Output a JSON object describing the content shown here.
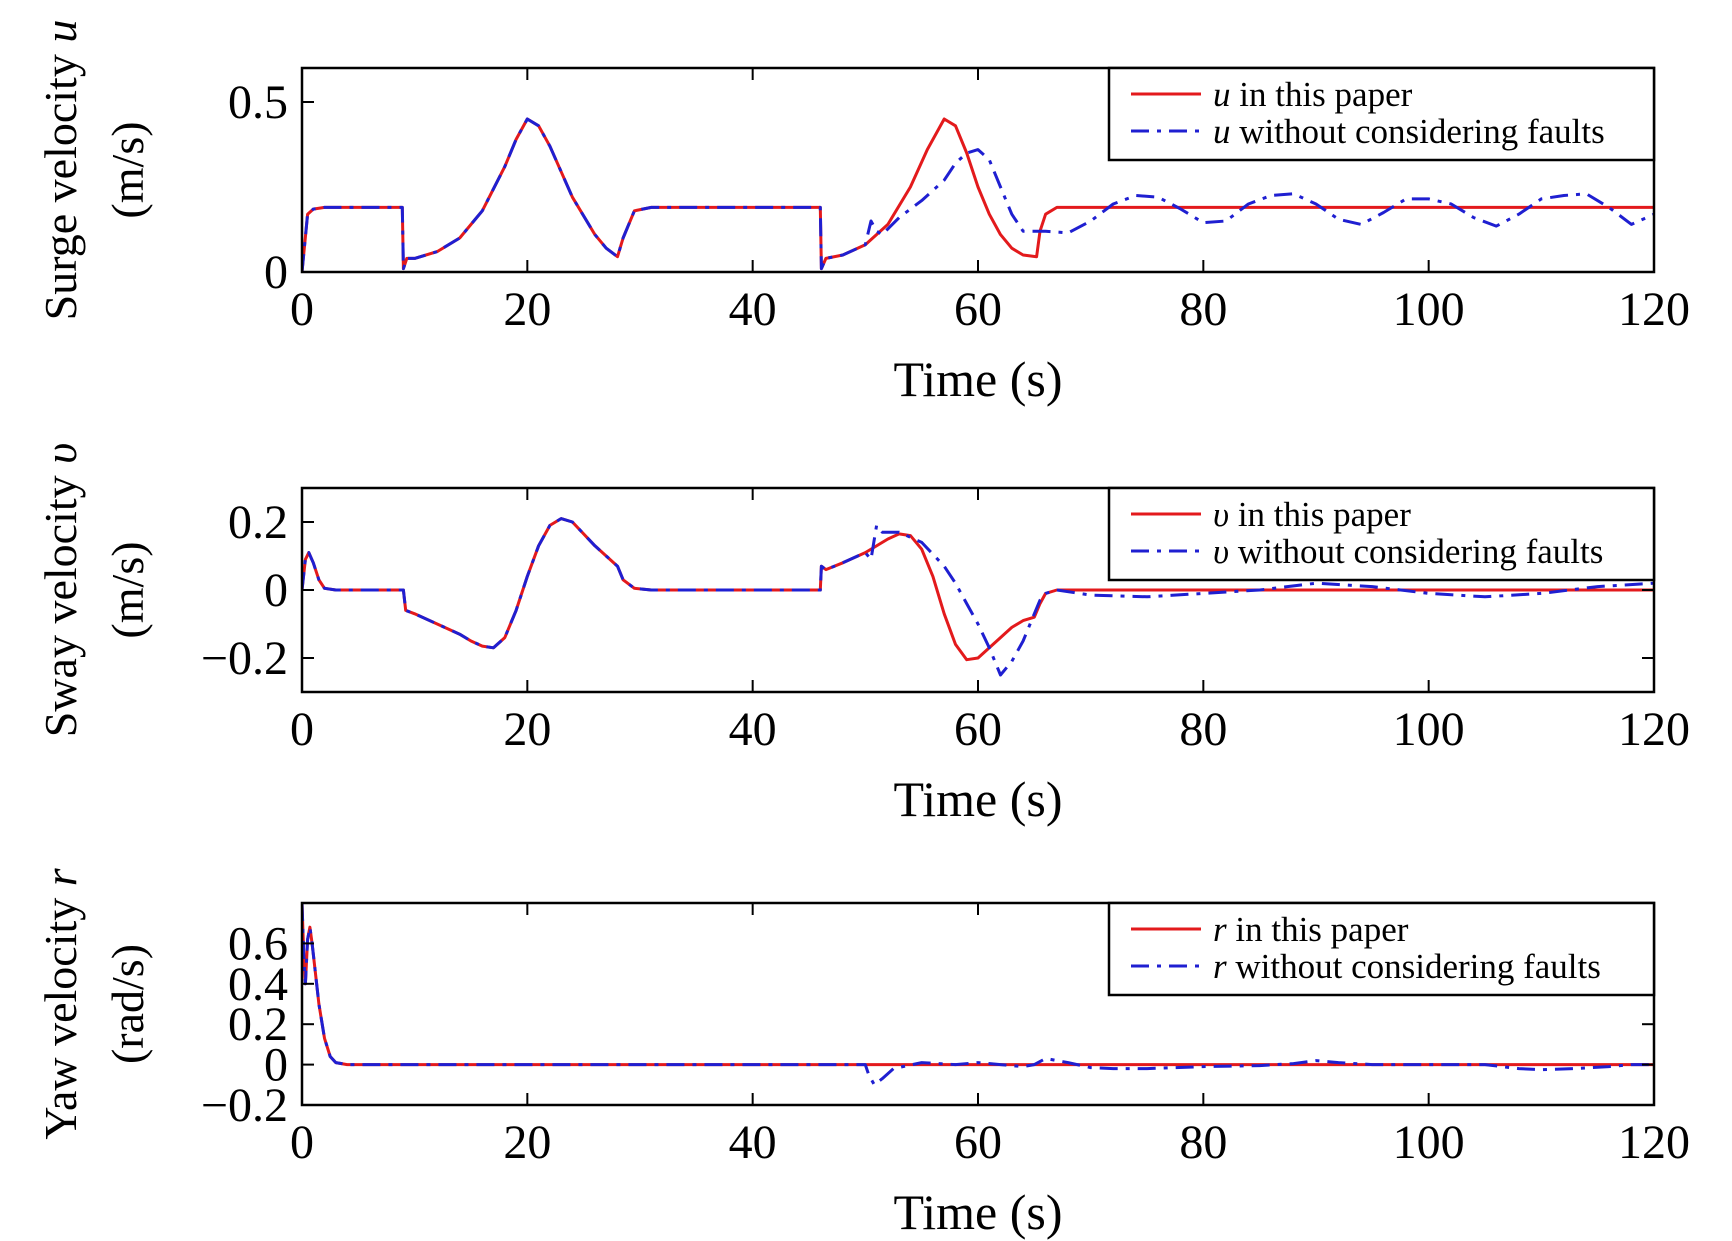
{
  "chart_data": [
    {
      "type": "line",
      "xlabel": "Time (s)",
      "ylabel_line1": "Surge velocity",
      "ylabel_symbol": "u",
      "ylabel_line2": "(m/s)",
      "xlim": [
        0,
        120
      ],
      "ylim": [
        0,
        0.6
      ],
      "xticks": [
        0,
        20,
        40,
        60,
        80,
        100,
        120
      ],
      "xtick_labels": [
        "0",
        "20",
        "40",
        "60",
        "80",
        "100",
        "120"
      ],
      "yticks": [
        0,
        0.5
      ],
      "ytick_labels": [
        "0",
        "0.5"
      ],
      "grid": false,
      "legend_position": "top-right",
      "series": [
        {
          "name": "u in this paper",
          "legend_symbol": "u",
          "legend_text": "in this paper",
          "color": "#e31a1c",
          "dash": "solid",
          "x": [
            0,
            0.5,
            1,
            2,
            5,
            8.9,
            9,
            9.3,
            10,
            12,
            14,
            16,
            18,
            19,
            20,
            21,
            22,
            24,
            26,
            27,
            28,
            28.5,
            29.5,
            31,
            35,
            40,
            46,
            46.1,
            46.5,
            48,
            50,
            52,
            54,
            55.5,
            57,
            58,
            59,
            60,
            61,
            62,
            63,
            64,
            65.2,
            65.5,
            66,
            67,
            70,
            75,
            80,
            90,
            100,
            110,
            120
          ],
          "y": [
            0,
            0.17,
            0.185,
            0.19,
            0.19,
            0.19,
            0.01,
            0.04,
            0.04,
            0.06,
            0.1,
            0.18,
            0.31,
            0.39,
            0.45,
            0.43,
            0.37,
            0.22,
            0.11,
            0.07,
            0.045,
            0.1,
            0.18,
            0.19,
            0.19,
            0.19,
            0.19,
            0.01,
            0.04,
            0.05,
            0.08,
            0.14,
            0.25,
            0.36,
            0.45,
            0.43,
            0.35,
            0.25,
            0.17,
            0.11,
            0.07,
            0.05,
            0.045,
            0.12,
            0.17,
            0.19,
            0.19,
            0.19,
            0.19,
            0.19,
            0.19,
            0.19,
            0.19
          ]
        },
        {
          "name": "u without considering faults",
          "legend_symbol": "u",
          "legend_text": "without considering faults",
          "color": "#1f1fd1",
          "dash": "dashdot",
          "x": [
            0,
            0.5,
            1,
            2,
            5,
            8.9,
            9,
            9.3,
            10,
            12,
            14,
            16,
            18,
            19,
            20,
            21,
            22,
            24,
            26,
            27,
            28,
            28.5,
            29.5,
            31,
            35,
            40,
            46,
            46.1,
            46.5,
            48,
            50,
            50.5,
            51,
            51.5,
            53,
            55,
            57,
            58,
            59,
            60,
            61,
            62,
            63,
            64,
            66,
            68,
            70,
            72,
            74,
            76,
            78,
            80,
            82,
            84,
            86,
            88,
            90,
            92,
            94,
            96,
            98,
            100,
            102,
            104,
            106,
            108,
            110,
            112,
            114,
            116,
            118,
            120
          ],
          "y": [
            0,
            0.17,
            0.185,
            0.19,
            0.19,
            0.19,
            0.01,
            0.04,
            0.04,
            0.06,
            0.1,
            0.18,
            0.31,
            0.39,
            0.45,
            0.43,
            0.37,
            0.22,
            0.11,
            0.07,
            0.045,
            0.1,
            0.18,
            0.19,
            0.19,
            0.19,
            0.19,
            0.01,
            0.04,
            0.05,
            0.08,
            0.15,
            0.12,
            0.11,
            0.16,
            0.21,
            0.27,
            0.32,
            0.35,
            0.36,
            0.33,
            0.25,
            0.17,
            0.12,
            0.12,
            0.115,
            0.15,
            0.2,
            0.225,
            0.22,
            0.185,
            0.145,
            0.15,
            0.2,
            0.225,
            0.23,
            0.2,
            0.155,
            0.14,
            0.175,
            0.215,
            0.215,
            0.2,
            0.16,
            0.135,
            0.17,
            0.215,
            0.225,
            0.23,
            0.19,
            0.14,
            0.17
          ]
        }
      ]
    },
    {
      "type": "line",
      "xlabel": "Time (s)",
      "ylabel_line1": "Sway velocity",
      "ylabel_symbol": "υ",
      "ylabel_line2": "(m/s)",
      "xlim": [
        0,
        120
      ],
      "ylim": [
        -0.3,
        0.3
      ],
      "xticks": [
        0,
        20,
        40,
        60,
        80,
        100,
        120
      ],
      "xtick_labels": [
        "0",
        "20",
        "40",
        "60",
        "80",
        "100",
        "120"
      ],
      "yticks": [
        -0.2,
        0,
        0.2
      ],
      "ytick_labels": [
        "−0.2",
        "0",
        "0.2"
      ],
      "grid": false,
      "legend_position": "top-right",
      "series": [
        {
          "name": "υ in this paper",
          "legend_symbol": "υ",
          "legend_text": "in this paper",
          "color": "#e31a1c",
          "dash": "solid",
          "x": [
            0,
            0.3,
            0.6,
            1,
            1.5,
            2,
            3,
            5,
            9,
            9.2,
            10,
            12,
            14,
            15,
            16,
            17,
            18,
            19,
            20,
            21,
            22,
            23,
            24,
            26,
            28,
            28.5,
            29.5,
            31,
            40,
            46,
            46.1,
            46.5,
            48,
            50,
            52,
            53,
            54,
            55,
            56,
            57,
            58,
            59,
            60,
            61,
            62,
            63,
            64,
            65,
            65.5,
            66,
            67,
            70,
            80,
            90,
            100,
            120
          ],
          "y": [
            0,
            0.09,
            0.11,
            0.08,
            0.03,
            0.005,
            0,
            0,
            0,
            -0.06,
            -0.07,
            -0.1,
            -0.13,
            -0.15,
            -0.165,
            -0.17,
            -0.14,
            -0.06,
            0.04,
            0.13,
            0.19,
            0.21,
            0.2,
            0.13,
            0.07,
            0.03,
            0.005,
            0,
            0,
            0,
            0.07,
            0.06,
            0.08,
            0.11,
            0.15,
            0.165,
            0.16,
            0.12,
            0.04,
            -0.07,
            -0.16,
            -0.205,
            -0.2,
            -0.17,
            -0.14,
            -0.11,
            -0.09,
            -0.08,
            -0.04,
            -0.01,
            0,
            0,
            0,
            0,
            0,
            0
          ]
        },
        {
          "name": "υ without considering faults",
          "legend_symbol": "υ",
          "legend_text": "without considering faults",
          "color": "#1f1fd1",
          "dash": "dashdot",
          "x": [
            0,
            0.3,
            0.6,
            1,
            1.5,
            2,
            3,
            5,
            9,
            9.2,
            10,
            12,
            14,
            15,
            16,
            17,
            18,
            19,
            20,
            21,
            22,
            23,
            24,
            26,
            28,
            28.5,
            29.5,
            31,
            40,
            46,
            46.1,
            46.5,
            48,
            50,
            50.5,
            51,
            51.5,
            52,
            53,
            55,
            57,
            58,
            59,
            60,
            61,
            62,
            63,
            64,
            65,
            65.5,
            66,
            67,
            70,
            75,
            80,
            85,
            90,
            95,
            100,
            105,
            110,
            115,
            120
          ],
          "y": [
            0,
            0.09,
            0.11,
            0.08,
            0.03,
            0.005,
            0,
            0,
            0,
            -0.06,
            -0.07,
            -0.1,
            -0.13,
            -0.15,
            -0.165,
            -0.17,
            -0.14,
            -0.06,
            0.04,
            0.13,
            0.19,
            0.21,
            0.2,
            0.13,
            0.07,
            0.03,
            0.005,
            0,
            0,
            0,
            0.07,
            0.06,
            0.08,
            0.11,
            0.09,
            0.19,
            0.17,
            0.17,
            0.17,
            0.14,
            0.07,
            0.02,
            -0.04,
            -0.1,
            -0.17,
            -0.25,
            -0.21,
            -0.15,
            -0.07,
            -0.03,
            -0.01,
            0,
            -0.015,
            -0.02,
            -0.01,
            0,
            0.02,
            0.01,
            -0.01,
            -0.02,
            -0.01,
            0.01,
            0.02
          ]
        }
      ]
    },
    {
      "type": "line",
      "xlabel": "Time (s)",
      "ylabel_line1": "Yaw velocity",
      "ylabel_symbol": "r",
      "ylabel_line2": "(rad/s)",
      "xlim": [
        0,
        120
      ],
      "ylim": [
        -0.2,
        0.8
      ],
      "xticks": [
        0,
        20,
        40,
        60,
        80,
        100,
        120
      ],
      "xtick_labels": [
        "0",
        "20",
        "40",
        "60",
        "80",
        "100",
        "120"
      ],
      "yticks": [
        -0.2,
        0,
        0.2,
        0.4,
        0.6
      ],
      "ytick_labels": [
        "−0.2",
        "0",
        "0.2",
        "0.4",
        "0.6"
      ],
      "grid": false,
      "legend_position": "top-right",
      "series": [
        {
          "name": "r in this paper",
          "legend_symbol": "r",
          "legend_text": "in this paper",
          "color": "#e31a1c",
          "dash": "solid",
          "x": [
            0,
            0.15,
            0.3,
            0.5,
            0.7,
            0.9,
            1.2,
            1.5,
            2,
            2.5,
            3,
            4,
            10,
            50,
            120
          ],
          "y": [
            0.8,
            0.55,
            0.4,
            0.62,
            0.68,
            0.6,
            0.45,
            0.3,
            0.13,
            0.04,
            0.01,
            0,
            0,
            0,
            0
          ]
        },
        {
          "name": "r without considering faults",
          "legend_symbol": "r",
          "legend_text": "without considering faults",
          "color": "#1f1fd1",
          "dash": "dashdot",
          "x": [
            0,
            0.15,
            0.3,
            0.5,
            0.7,
            0.9,
            1.2,
            1.5,
            2,
            2.5,
            3,
            4,
            10,
            50,
            50.3,
            50.8,
            51.5,
            52.5,
            55,
            58,
            60,
            62,
            64,
            65,
            66,
            68,
            70,
            72,
            75,
            80,
            85,
            88,
            90,
            92,
            95,
            100,
            105,
            108,
            110,
            113,
            116,
            118,
            120
          ],
          "y": [
            0.8,
            0.55,
            0.4,
            0.62,
            0.68,
            0.6,
            0.45,
            0.3,
            0.13,
            0.04,
            0.01,
            0,
            0,
            0,
            -0.05,
            -0.1,
            -0.07,
            -0.02,
            0.01,
            0,
            0.01,
            0,
            -0.01,
            0,
            0.03,
            0.01,
            -0.015,
            -0.02,
            -0.02,
            -0.01,
            -0.005,
            0.005,
            0.02,
            0.01,
            0,
            0,
            0,
            -0.02,
            -0.025,
            -0.02,
            -0.01,
            0,
            0
          ]
        }
      ]
    }
  ]
}
